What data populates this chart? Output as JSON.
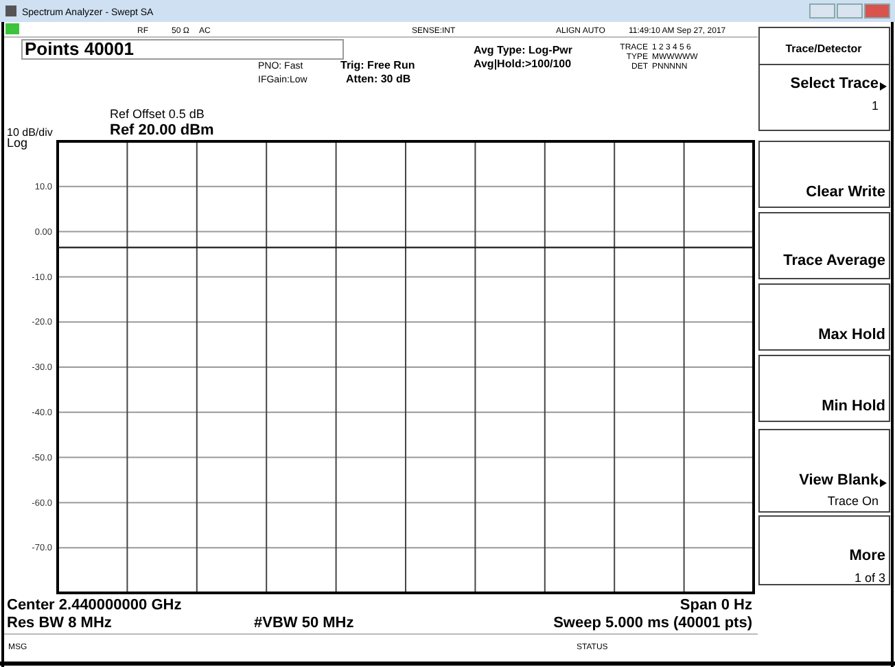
{
  "chart_data": {
    "type": "line",
    "categories": [
      null,
      null,
      null,
      null,
      null,
      null,
      null,
      null,
      null,
      null,
      null
    ],
    "series": [
      {
        "color": "#1a1a1a",
        "values": [
          -3.5,
          -3.5,
          -3.5,
          -3.5,
          -3.5,
          -3.5,
          -3.5,
          -3.5,
          -3.5,
          -3.5,
          -3.5
        ]
      }
    ],
    "ylim": [
      -80,
      20
    ],
    "yticks": [
      {
        "value": 20,
        "label": null
      },
      {
        "value": 10,
        "label": "10.0"
      },
      {
        "value": 0,
        "label": "0.00"
      },
      {
        "value": -10,
        "label": "-10.0"
      },
      {
        "value": -20,
        "label": "-20.0"
      },
      {
        "value": -30,
        "label": "-30.0"
      },
      {
        "value": -40,
        "label": "-40.0"
      },
      {
        "value": -50,
        "label": "-50.0"
      },
      {
        "value": -60,
        "label": "-60.0"
      },
      {
        "value": -70,
        "label": "-70.0"
      },
      {
        "value": -80,
        "label": null
      }
    ],
    "grid": true,
    "tick_labels": "y",
    "marker": "none",
    "line_style": "solid",
    "annotations": [
      "Spectrum Analyzer - Swept SA",
      "RF",
      "50 Ω",
      "AC",
      "SENSE:INT",
      "ALIGN AUTO",
      "11:49:10 AM Sep 27, 2017",
      "Points 40001",
      "PNO: Fast",
      "IFGain:Low",
      "Trig: Free Run",
      "Atten: 30 dB",
      "Avg Type: Log-Pwr",
      "Avg|Hold:>100/100",
      "TRACE",
      "1 2 3 4 5 6",
      "TYPE",
      "MWWWWW",
      "DET",
      "PNNNNN",
      "Ref Offset 0.5 dB",
      "Ref 20.00 dBm",
      "10 dB/div",
      "Log",
      "Center 2.440000000 GHz",
      "Res BW 8 MHz",
      "#VBW 50 MHz",
      "Span 0 Hz",
      "Sweep 5.000 ms (40001 pts)",
      "MSG",
      "STATUS",
      "Trace/Detector",
      "Select Trace",
      "1",
      "Clear Write",
      "Trace Average",
      "Max Hold",
      "Min Hold",
      "View Blank",
      "Trace On",
      "More",
      "1 of 3"
    ]
  }
}
